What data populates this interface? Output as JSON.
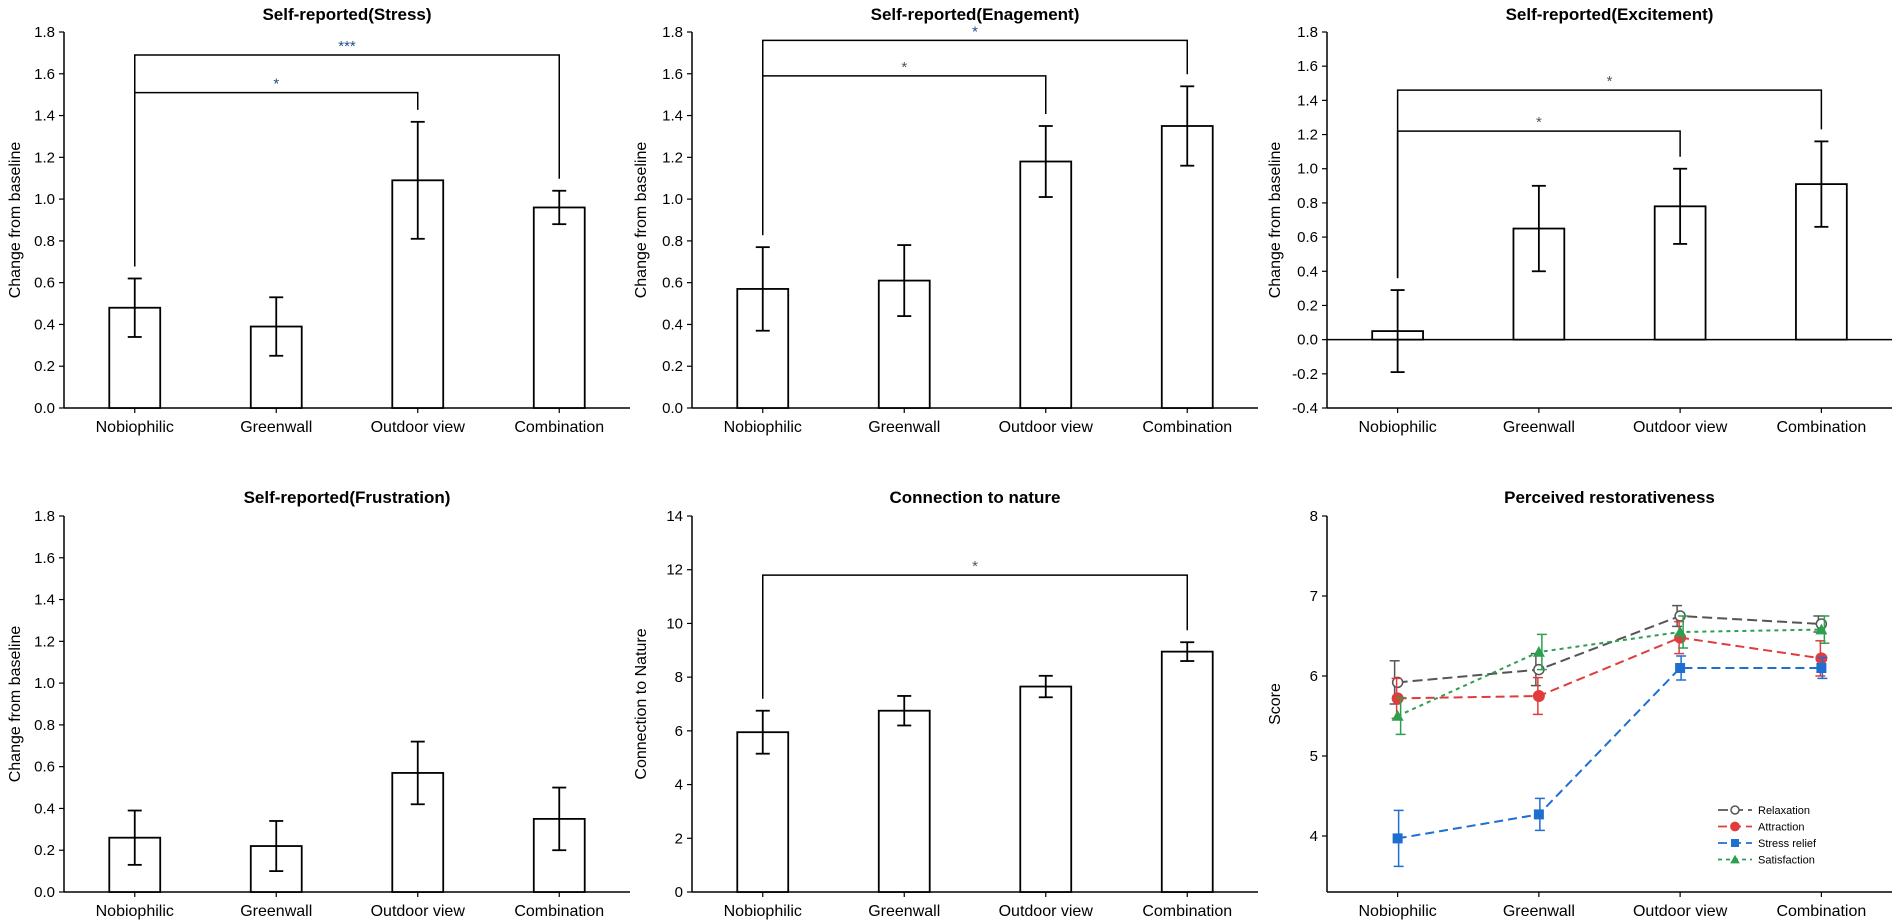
{
  "chart_data": [
    {
      "type": "bar",
      "title": "Self-reported(Stress)",
      "xlabel": "",
      "ylabel": "Change from baseline",
      "categories": [
        "Nobiophilic",
        "Greenwall",
        "Outdoor view",
        "Combination"
      ],
      "values": [
        0.48,
        0.39,
        1.09,
        0.96
      ],
      "errors": [
        0.14,
        0.14,
        0.28,
        0.08
      ],
      "ylim": [
        0,
        1.8
      ],
      "yticks": [
        "0.0",
        "0.2",
        "0.4",
        "0.6",
        "0.8",
        "1.0",
        "1.2",
        "1.4",
        "1.6",
        "1.8"
      ],
      "significance": [
        {
          "from": 0,
          "to": 2,
          "label": "*",
          "height": 1.51,
          "color": "#1f4e8c"
        },
        {
          "from": 0,
          "to": 3,
          "label": "***",
          "height": 1.69,
          "color": "#1f4e8c"
        }
      ]
    },
    {
      "type": "bar",
      "title": "Self-reported(Enagement)",
      "xlabel": "",
      "ylabel": "Change from baseline",
      "categories": [
        "Nobiophilic",
        "Greenwall",
        "Outdoor view",
        "Combination"
      ],
      "values": [
        0.57,
        0.61,
        1.18,
        1.35
      ],
      "errors": [
        0.2,
        0.17,
        0.17,
        0.19
      ],
      "ylim": [
        0,
        1.8
      ],
      "yticks": [
        "0.0",
        "0.2",
        "0.4",
        "0.6",
        "0.8",
        "1.0",
        "1.2",
        "1.4",
        "1.6",
        "1.8"
      ],
      "significance": [
        {
          "from": 0,
          "to": 2,
          "label": "*",
          "height": 1.59,
          "color": "#555555"
        },
        {
          "from": 0,
          "to": 3,
          "label": "*",
          "height": 1.76,
          "color": "#1f4e8c"
        }
      ]
    },
    {
      "type": "bar",
      "title": "Self-reported(Excitement)",
      "xlabel": "",
      "ylabel": "Change from baseline",
      "categories": [
        "Nobiophilic",
        "Greenwall",
        "Outdoor view",
        "Combination"
      ],
      "values": [
        0.05,
        0.65,
        0.78,
        0.91
      ],
      "errors": [
        0.24,
        0.25,
        0.22,
        0.25
      ],
      "ylim": [
        -0.4,
        1.8
      ],
      "yticks": [
        "-0.4",
        "-0.2",
        "0.0",
        "0.2",
        "0.4",
        "0.6",
        "0.8",
        "1.0",
        "1.2",
        "1.4",
        "1.6",
        "1.8"
      ],
      "significance": [
        {
          "from": 0,
          "to": 2,
          "label": "*",
          "height": 1.22,
          "color": "#555555"
        },
        {
          "from": 0,
          "to": 3,
          "label": "*",
          "height": 1.46,
          "color": "#555555"
        }
      ]
    },
    {
      "type": "bar",
      "title": "Self-reported(Frustration)",
      "xlabel": "",
      "ylabel": "Change from baseline",
      "categories": [
        "Nobiophilic",
        "Greenwall",
        "Outdoor view",
        "Combination"
      ],
      "values": [
        0.26,
        0.22,
        0.57,
        0.35
      ],
      "errors": [
        0.13,
        0.12,
        0.15,
        0.15
      ],
      "ylim": [
        0,
        1.8
      ],
      "yticks": [
        "0.0",
        "0.2",
        "0.4",
        "0.6",
        "0.8",
        "1.0",
        "1.2",
        "1.4",
        "1.6",
        "1.8"
      ],
      "significance": []
    },
    {
      "type": "bar",
      "title": "Connection to nature",
      "xlabel": "",
      "ylabel": "Connection to Nature",
      "categories": [
        "Nobiophilic",
        "Greenwall",
        "Outdoor view",
        "Combination"
      ],
      "values": [
        5.95,
        6.75,
        7.65,
        8.95
      ],
      "errors": [
        0.8,
        0.55,
        0.4,
        0.35
      ],
      "ylim": [
        0,
        14
      ],
      "yticks": [
        "0",
        "2",
        "4",
        "6",
        "8",
        "10",
        "12",
        "14"
      ],
      "significance": [
        {
          "from": 0,
          "to": 3,
          "label": "*",
          "height": 11.8,
          "color": "#555555"
        }
      ]
    },
    {
      "type": "line",
      "title": "Perceived restorativeness",
      "xlabel": "",
      "ylabel": "Score",
      "categories": [
        "Nobiophilic",
        "Greenwall",
        "Outdoor view",
        "Combination"
      ],
      "ylim": [
        3.3,
        8
      ],
      "yticks": [
        "4",
        "5",
        "6",
        "7",
        "8"
      ],
      "series": [
        {
          "name": "Relaxation",
          "values": [
            5.92,
            6.08,
            6.75,
            6.65
          ],
          "errors": [
            0.27,
            0.2,
            0.13,
            0.1
          ],
          "color": "#555555",
          "marker": "circle-open"
        },
        {
          "name": "Attraction",
          "values": [
            5.72,
            5.75,
            6.48,
            6.22
          ],
          "errors": [
            0.25,
            0.23,
            0.2,
            0.22
          ],
          "color": "#e03c3c",
          "marker": "circle"
        },
        {
          "name": "Stress relief",
          "values": [
            3.97,
            4.27,
            6.1,
            6.1
          ],
          "errors": [
            0.35,
            0.2,
            0.15,
            0.13
          ],
          "color": "#1f6fd1",
          "marker": "square"
        },
        {
          "name": "Satisfaction",
          "values": [
            5.5,
            6.3,
            6.55,
            6.58
          ],
          "errors": [
            0.23,
            0.22,
            0.2,
            0.17
          ],
          "color": "#2e9e4f",
          "marker": "triangle"
        }
      ],
      "legend_position": "bottom-right"
    }
  ]
}
